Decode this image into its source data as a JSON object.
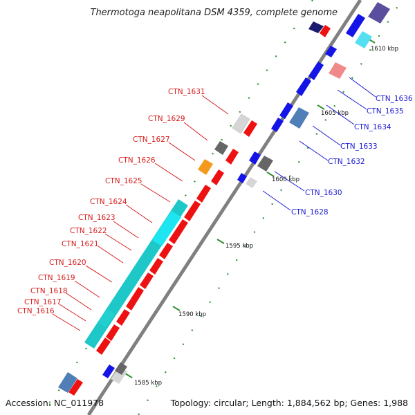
{
  "header": {
    "title": "Thermotoga neapolitana DSM 4359, complete genome"
  },
  "footer": {
    "accession": "Accession: NC_011978",
    "summary": "Topology: circular; Length: 1,884,562 bp; Genes: 1,988"
  },
  "scale": {
    "ticks": [
      "1585 kbp",
      "1590 kbp",
      "1595 kbp",
      "1600 kbp",
      "1605 kbp",
      "1610 kbp"
    ]
  },
  "genes": {
    "reverse_labels": [
      "CTN_1631",
      "CTN_1629",
      "CTN_1627",
      "CTN_1626",
      "CTN_1625",
      "CTN_1624",
      "CTN_1623",
      "CTN_1622",
      "CTN_1621",
      "CTN_1620",
      "CTN_1619",
      "CTN_1618",
      "CTN_1617",
      "CTN_1616"
    ],
    "forward_labels": [
      "CTN_1636",
      "CTN_1635",
      "CTN_1634",
      "CTN_1633",
      "CTN_1632",
      "CTN_1630",
      "CTN_1628"
    ]
  },
  "colors": {
    "reverse_cds": "#ee1111",
    "forward_cds": "#1414e6",
    "cyan_track": "#1ec8c8",
    "backbone": "#888888",
    "tick_green": "#2f8f2f"
  }
}
